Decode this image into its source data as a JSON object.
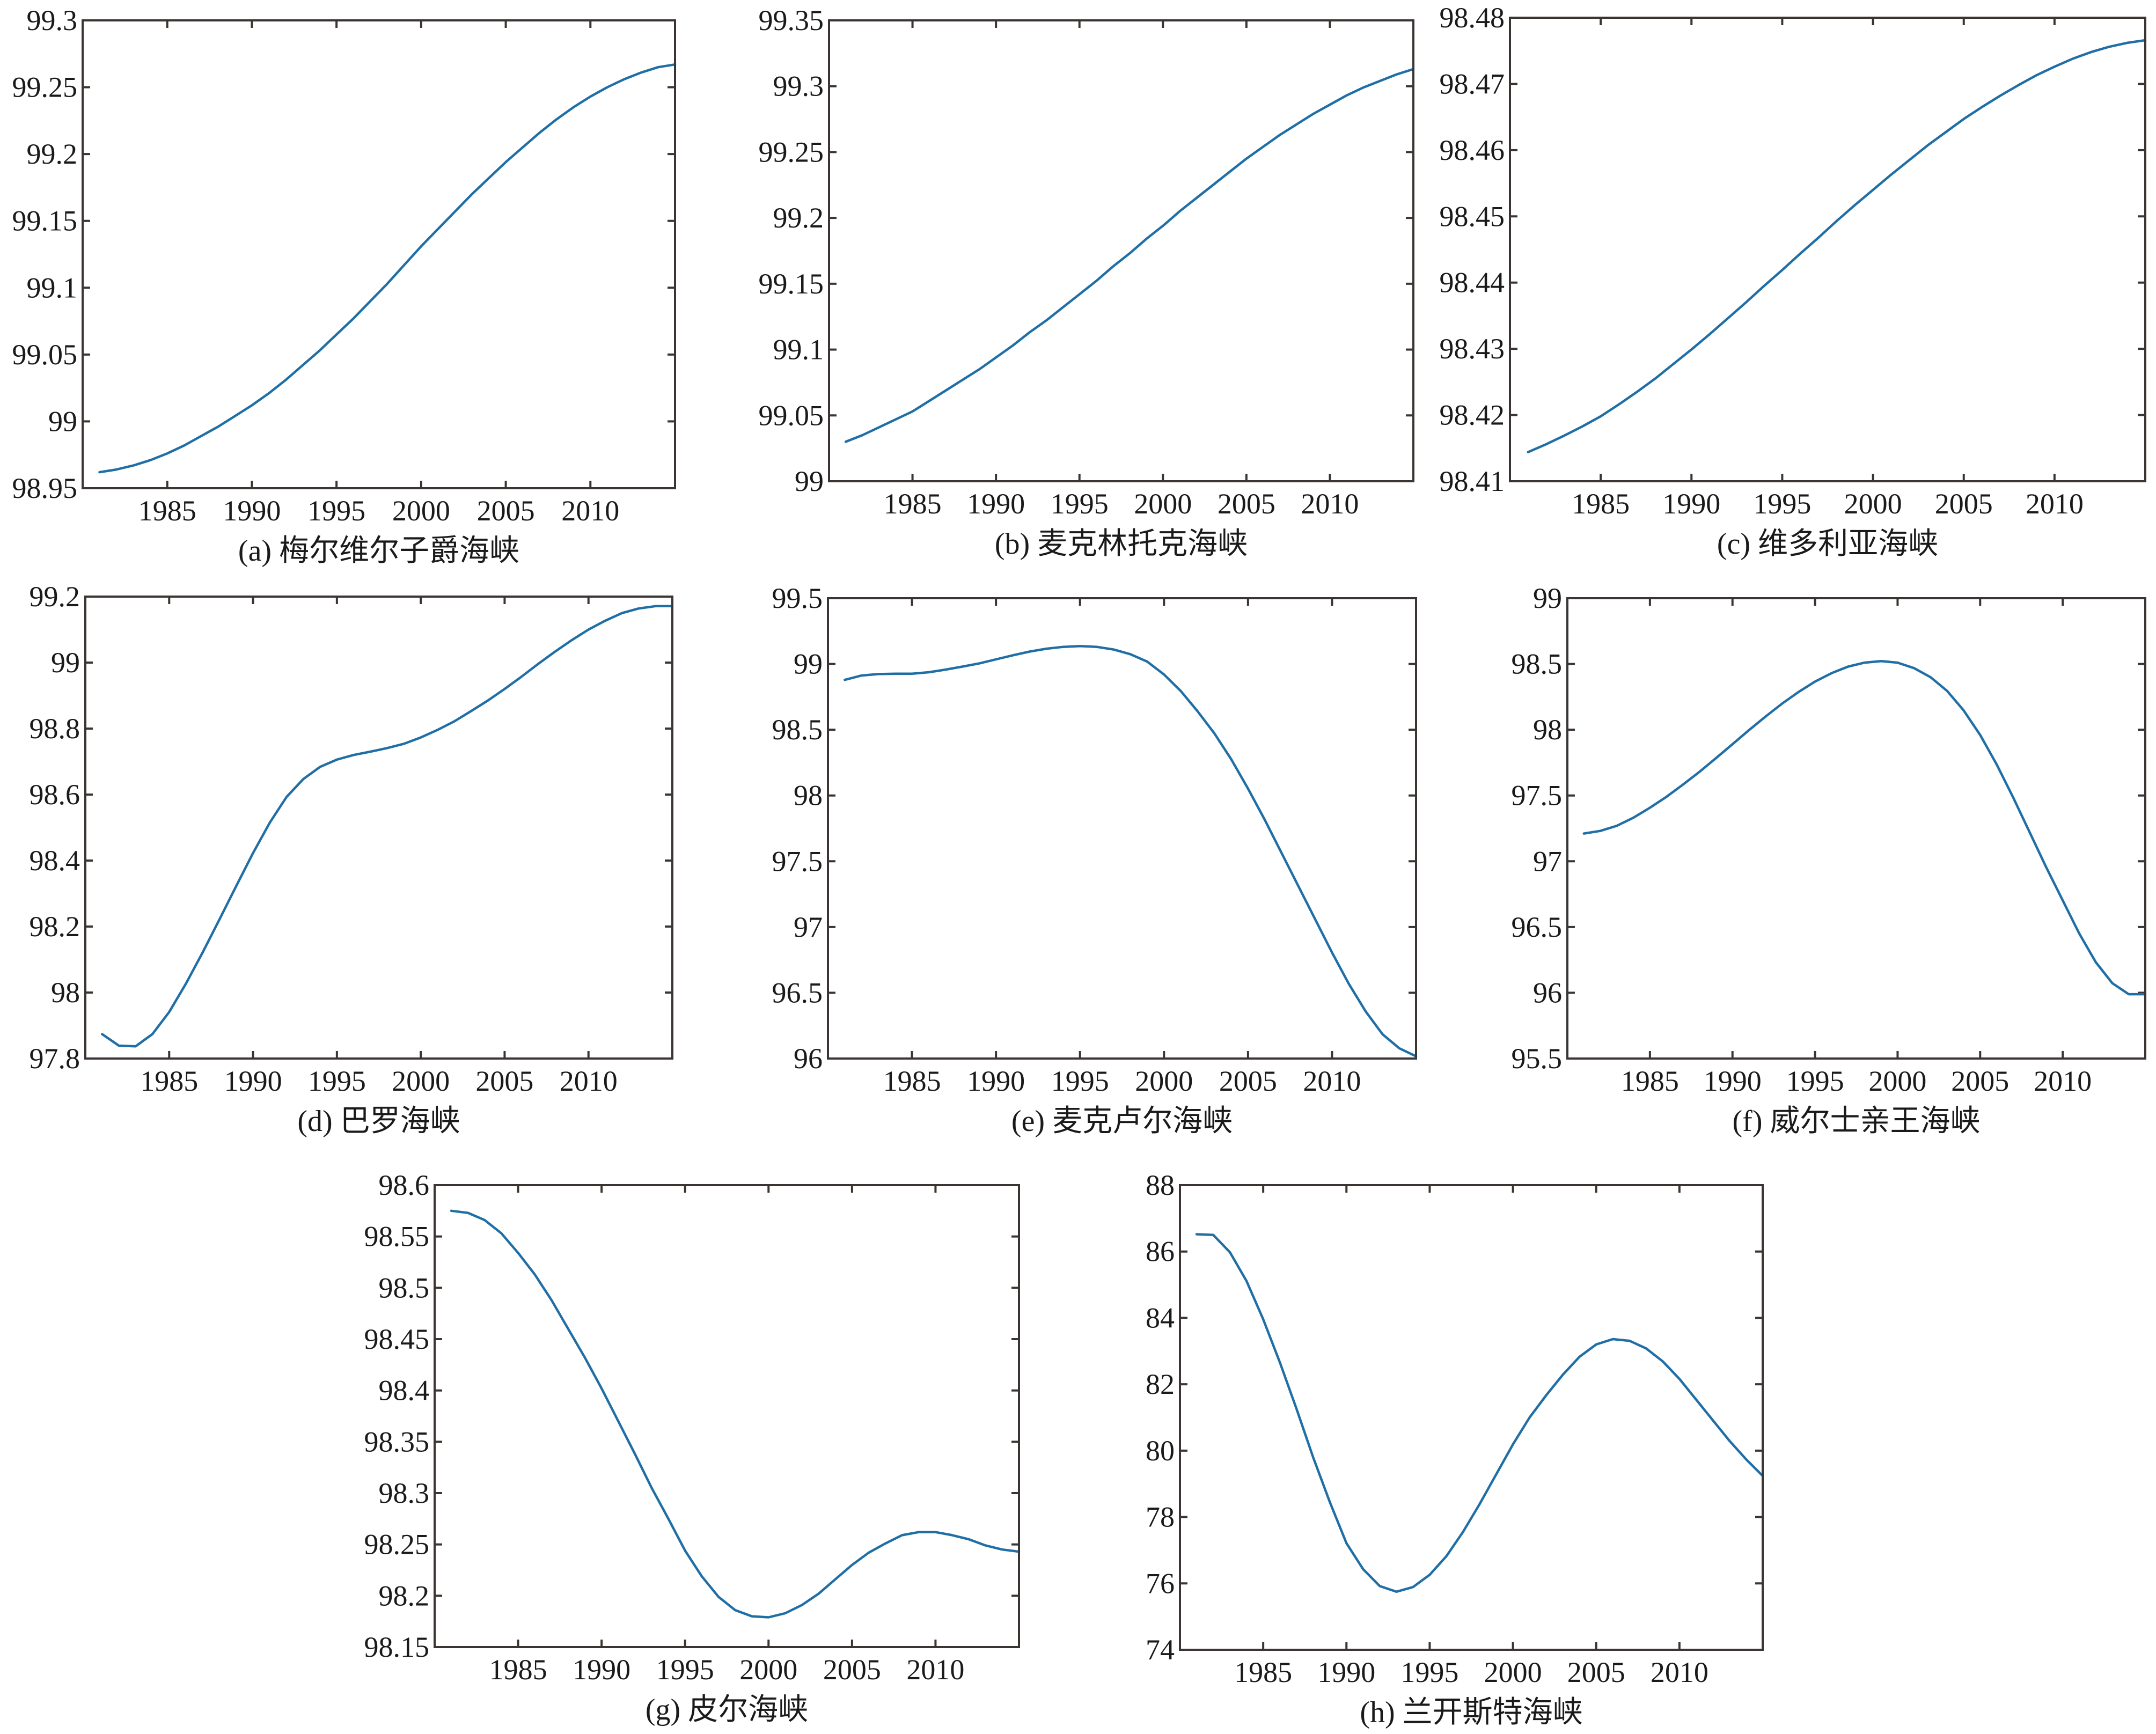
{
  "colors": {
    "line": "#1f6fa6",
    "axis": "#3a3532"
  },
  "chart_data": [
    {
      "type": "line",
      "title": "(a) 梅尔维尔子爵海峡",
      "xlim": [
        1980,
        2015
      ],
      "ylim": [
        98.95,
        99.3
      ],
      "xticks": [
        1985,
        1990,
        1995,
        2000,
        2005,
        2010
      ],
      "xtick_labels": [
        "1985",
        "1990",
        "1995",
        "2000",
        "2005",
        "2010"
      ],
      "yticks": [
        98.95,
        99,
        99.05,
        99.1,
        99.15,
        99.2,
        99.25,
        99.3
      ],
      "ytick_labels": [
        "98.95",
        "99",
        "99.05",
        "99.1",
        "99.15",
        "99.2",
        "99.25",
        "99.3"
      ],
      "x": [
        1981,
        1982,
        1983,
        1984,
        1985,
        1986,
        1987,
        1988,
        1989,
        1990,
        1991,
        1992,
        1993,
        1994,
        1995,
        1996,
        1997,
        1998,
        1999,
        2000,
        2001,
        2002,
        2003,
        2004,
        2005,
        2006,
        2007,
        2008,
        2009,
        2010,
        2011,
        2012,
        2013,
        2014,
        2015
      ],
      "y": [
        98.962,
        98.964,
        98.967,
        98.971,
        98.976,
        98.982,
        98.989,
        98.996,
        99.004,
        99.012,
        99.021,
        99.031,
        99.042,
        99.053,
        99.065,
        99.077,
        99.09,
        99.103,
        99.117,
        99.131,
        99.144,
        99.157,
        99.17,
        99.182,
        99.194,
        99.205,
        99.216,
        99.226,
        99.235,
        99.243,
        99.25,
        99.256,
        99.261,
        99.265,
        99.267
      ]
    },
    {
      "type": "line",
      "title": "(b) 麦克林托克海峡",
      "xlim": [
        1980,
        2015
      ],
      "ylim": [
        99,
        99.35
      ],
      "xticks": [
        1985,
        1990,
        1995,
        2000,
        2005,
        2010
      ],
      "xtick_labels": [
        "1985",
        "1990",
        "1995",
        "2000",
        "2005",
        "2010"
      ],
      "yticks": [
        99,
        99.05,
        99.1,
        99.15,
        99.2,
        99.25,
        99.3,
        99.35
      ],
      "ytick_labels": [
        "99",
        "99.05",
        "99.1",
        "99.15",
        "99.2",
        "99.25",
        "99.3",
        "99.35"
      ],
      "x": [
        1981,
        1982,
        1983,
        1984,
        1985,
        1986,
        1987,
        1988,
        1989,
        1990,
        1991,
        1992,
        1993,
        1994,
        1995,
        1996,
        1997,
        1998,
        1999,
        2000,
        2001,
        2002,
        2003,
        2004,
        2005,
        2006,
        2007,
        2008,
        2009,
        2010,
        2011,
        2012,
        2013,
        2014,
        2015
      ],
      "y": [
        99.03,
        99.035,
        99.041,
        99.047,
        99.053,
        99.061,
        99.069,
        99.077,
        99.085,
        99.094,
        99.103,
        99.113,
        99.122,
        99.132,
        99.142,
        99.152,
        99.163,
        99.173,
        99.184,
        99.194,
        99.205,
        99.215,
        99.225,
        99.235,
        99.245,
        99.254,
        99.263,
        99.271,
        99.279,
        99.286,
        99.293,
        99.299,
        99.304,
        99.309,
        99.313
      ]
    },
    {
      "type": "line",
      "title": "(c) 维多利亚海峡",
      "xlim": [
        1980,
        2015
      ],
      "ylim": [
        98.41,
        98.48
      ],
      "xticks": [
        1985,
        1990,
        1995,
        2000,
        2005,
        2010
      ],
      "xtick_labels": [
        "1985",
        "1990",
        "1995",
        "2000",
        "2005",
        "2010"
      ],
      "yticks": [
        98.41,
        98.42,
        98.43,
        98.44,
        98.45,
        98.46,
        98.47,
        98.48
      ],
      "ytick_labels": [
        "98.41",
        "98.42",
        "98.43",
        "98.44",
        "98.45",
        "98.46",
        "98.47",
        "98.48"
      ],
      "x": [
        1981,
        1982,
        1983,
        1984,
        1985,
        1986,
        1987,
        1988,
        1989,
        1990,
        1991,
        1992,
        1993,
        1994,
        1995,
        1996,
        1997,
        1998,
        1999,
        2000,
        2001,
        2002,
        2003,
        2004,
        2005,
        2006,
        2007,
        2008,
        2009,
        2010,
        2011,
        2012,
        2013,
        2014,
        2015
      ],
      "y": [
        98.4144,
        98.4156,
        98.4169,
        98.4183,
        98.4198,
        98.4216,
        98.4235,
        98.4255,
        98.4277,
        98.4299,
        98.4322,
        98.4346,
        98.437,
        98.4395,
        98.4419,
        98.4444,
        98.4468,
        98.4493,
        98.4517,
        98.454,
        98.4563,
        98.4585,
        98.4607,
        98.4627,
        98.4647,
        98.4665,
        98.4682,
        98.4698,
        98.4713,
        98.4726,
        98.4738,
        98.4748,
        98.4756,
        98.4762,
        98.4766
      ]
    },
    {
      "type": "line",
      "title": "(d) 巴罗海峡",
      "xlim": [
        1980,
        2015
      ],
      "ylim": [
        97.8,
        99.2
      ],
      "xticks": [
        1985,
        1990,
        1995,
        2000,
        2005,
        2010
      ],
      "xtick_labels": [
        "1985",
        "1990",
        "1995",
        "2000",
        "2005",
        "2010"
      ],
      "yticks": [
        97.8,
        98,
        98.2,
        98.4,
        98.6,
        98.8,
        99,
        99.2
      ],
      "ytick_labels": [
        "97.8",
        "98",
        "98.2",
        "98.4",
        "98.6",
        "98.8",
        "99",
        "99.2"
      ],
      "x": [
        1981,
        1982,
        1983,
        1984,
        1985,
        1986,
        1987,
        1988,
        1989,
        1990,
        1991,
        1992,
        1993,
        1994,
        1995,
        1996,
        1997,
        1998,
        1999,
        2000,
        2001,
        2002,
        2003,
        2004,
        2005,
        2006,
        2007,
        2008,
        2009,
        2010,
        2011,
        2012,
        2013,
        2014,
        2015
      ],
      "y": [
        97.874,
        97.839,
        97.837,
        97.874,
        97.941,
        98.027,
        98.122,
        98.222,
        98.323,
        98.423,
        98.515,
        98.593,
        98.647,
        98.684,
        98.706,
        98.72,
        98.73,
        98.741,
        98.754,
        98.773,
        98.796,
        98.822,
        98.853,
        98.885,
        98.92,
        98.957,
        98.996,
        99.033,
        99.068,
        99.1,
        99.127,
        99.15,
        99.164,
        99.171,
        99.171
      ]
    },
    {
      "type": "line",
      "title": "(e) 麦克卢尔海峡",
      "xlim": [
        1980,
        2015
      ],
      "ylim": [
        96,
        99.5
      ],
      "xticks": [
        1985,
        1990,
        1995,
        2000,
        2005,
        2010
      ],
      "xtick_labels": [
        "1985",
        "1990",
        "1995",
        "2000",
        "2005",
        "2010"
      ],
      "yticks": [
        96,
        96.5,
        97,
        97.5,
        98,
        98.5,
        99,
        99.5
      ],
      "ytick_labels": [
        "96",
        "96.5",
        "97",
        "97.5",
        "98",
        "98.5",
        "99",
        "99.5"
      ],
      "x": [
        1981,
        1982,
        1983,
        1984,
        1985,
        1986,
        1987,
        1988,
        1989,
        1990,
        1991,
        1992,
        1993,
        1994,
        1995,
        1996,
        1997,
        1998,
        1999,
        2000,
        2001,
        2002,
        2003,
        2004,
        2005,
        2006,
        2007,
        2008,
        2009,
        2010,
        2011,
        2012,
        2013,
        2014,
        2015
      ],
      "y": [
        98.879,
        98.912,
        98.923,
        98.926,
        98.926,
        98.937,
        98.957,
        98.98,
        99.004,
        99.035,
        99.066,
        99.094,
        99.116,
        99.13,
        99.136,
        99.13,
        99.11,
        99.074,
        99.018,
        98.92,
        98.794,
        98.64,
        98.472,
        98.276,
        98.052,
        97.814,
        97.562,
        97.31,
        97.058,
        96.806,
        96.568,
        96.358,
        96.185,
        96.078,
        96.017
      ]
    },
    {
      "type": "line",
      "title": "(f) 威尔士亲王海峡",
      "xlim": [
        1980,
        2015
      ],
      "ylim": [
        95.5,
        99
      ],
      "xticks": [
        1985,
        1990,
        1995,
        2000,
        2005,
        2010
      ],
      "xtick_labels": [
        "1985",
        "1990",
        "1995",
        "2000",
        "2005",
        "2010"
      ],
      "yticks": [
        95.5,
        96,
        96.5,
        97,
        97.5,
        98,
        98.5,
        99
      ],
      "ytick_labels": [
        "95.5",
        "96",
        "96.5",
        "97",
        "97.5",
        "98",
        "98.5",
        "99"
      ],
      "x": [
        1981,
        1982,
        1983,
        1984,
        1985,
        1986,
        1987,
        1988,
        1989,
        1990,
        1991,
        1992,
        1993,
        1994,
        1995,
        1996,
        1997,
        1998,
        1999,
        2000,
        2001,
        2002,
        2003,
        2004,
        2005,
        2006,
        2007,
        2008,
        2009,
        2010,
        2011,
        2012,
        2013,
        2014,
        2015
      ],
      "y": [
        97.211,
        97.231,
        97.27,
        97.331,
        97.407,
        97.49,
        97.583,
        97.68,
        97.784,
        97.89,
        97.997,
        98.1,
        98.198,
        98.287,
        98.366,
        98.43,
        98.48,
        98.51,
        98.522,
        98.51,
        98.468,
        98.399,
        98.295,
        98.147,
        97.96,
        97.736,
        97.485,
        97.22,
        96.954,
        96.703,
        96.451,
        96.233,
        96.073,
        95.989,
        95.989
      ]
    },
    {
      "type": "line",
      "title": "(g) 皮尔海峡",
      "xlim": [
        1980,
        2015
      ],
      "ylim": [
        98.15,
        98.6
      ],
      "xticks": [
        1985,
        1990,
        1995,
        2000,
        2005,
        2010
      ],
      "xtick_labels": [
        "1985",
        "1990",
        "1995",
        "2000",
        "2005",
        "2010"
      ],
      "yticks": [
        98.15,
        98.2,
        98.25,
        98.3,
        98.35,
        98.4,
        98.45,
        98.5,
        98.55,
        98.6
      ],
      "ytick_labels": [
        "98.15",
        "98.2",
        "98.25",
        "98.3",
        "98.35",
        "98.4",
        "98.45",
        "98.5",
        "98.55",
        "98.6"
      ],
      "x": [
        1981,
        1982,
        1983,
        1984,
        1985,
        1986,
        1987,
        1988,
        1989,
        1990,
        1991,
        1992,
        1993,
        1994,
        1995,
        1996,
        1997,
        1998,
        1999,
        2000,
        2001,
        2002,
        2003,
        2004,
        2005,
        2006,
        2007,
        2008,
        2009,
        2010,
        2011,
        2012,
        2013,
        2014,
        2015
      ],
      "y": [
        98.575,
        98.573,
        98.566,
        98.553,
        98.534,
        98.513,
        98.488,
        98.46,
        98.432,
        98.402,
        98.37,
        98.338,
        98.305,
        98.275,
        98.244,
        98.219,
        98.199,
        98.186,
        98.18,
        98.179,
        98.183,
        98.191,
        98.202,
        98.216,
        98.23,
        98.242,
        98.251,
        98.259,
        98.262,
        98.262,
        98.259,
        98.255,
        98.249,
        98.245,
        98.243
      ]
    },
    {
      "type": "line",
      "title": "(h) 兰开斯特海峡",
      "xlim": [
        1980,
        2015
      ],
      "ylim": [
        74,
        88
      ],
      "xticks": [
        1985,
        1990,
        1995,
        2000,
        2005,
        2010
      ],
      "xtick_labels": [
        "1985",
        "1990",
        "1995",
        "2000",
        "2005",
        "2010"
      ],
      "yticks": [
        74,
        76,
        78,
        80,
        82,
        84,
        86,
        88
      ],
      "ytick_labels": [
        "74",
        "76",
        "78",
        "80",
        "82",
        "84",
        "86",
        "88"
      ],
      "x": [
        1981,
        1982,
        1983,
        1984,
        1985,
        1986,
        1987,
        1988,
        1989,
        1990,
        1991,
        1992,
        1993,
        1994,
        1995,
        1996,
        1997,
        1998,
        1999,
        2000,
        2001,
        2002,
        2003,
        2004,
        2005,
        2006,
        2007,
        2008,
        2009,
        2010,
        2011,
        2012,
        2013,
        2014,
        2015
      ],
      "y": [
        86.52,
        86.5,
        85.98,
        85.11,
        83.96,
        82.66,
        81.26,
        79.8,
        78.45,
        77.21,
        76.43,
        75.92,
        75.75,
        75.89,
        76.26,
        76.82,
        77.55,
        78.39,
        79.29,
        80.19,
        81.0,
        81.67,
        82.29,
        82.83,
        83.2,
        83.36,
        83.31,
        83.08,
        82.69,
        82.16,
        81.54,
        80.92,
        80.3,
        79.74,
        79.24
      ]
    }
  ]
}
